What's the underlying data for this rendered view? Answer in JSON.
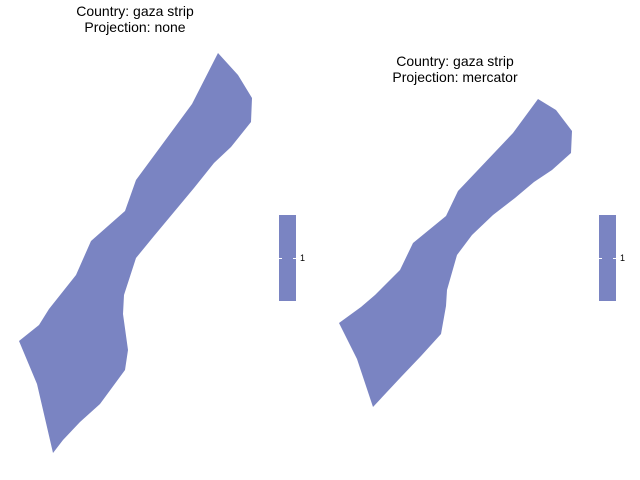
{
  "colors": {
    "fill": "#7a84c2",
    "background": "#ffffff"
  },
  "panels": [
    {
      "title_line1": "Country: gaza strip",
      "title_line2": "Projection: none",
      "legend_label": "1"
    },
    {
      "title_line1": "Country: gaza strip",
      "title_line2": "Projection: mercator",
      "legend_label": "1"
    }
  ]
}
